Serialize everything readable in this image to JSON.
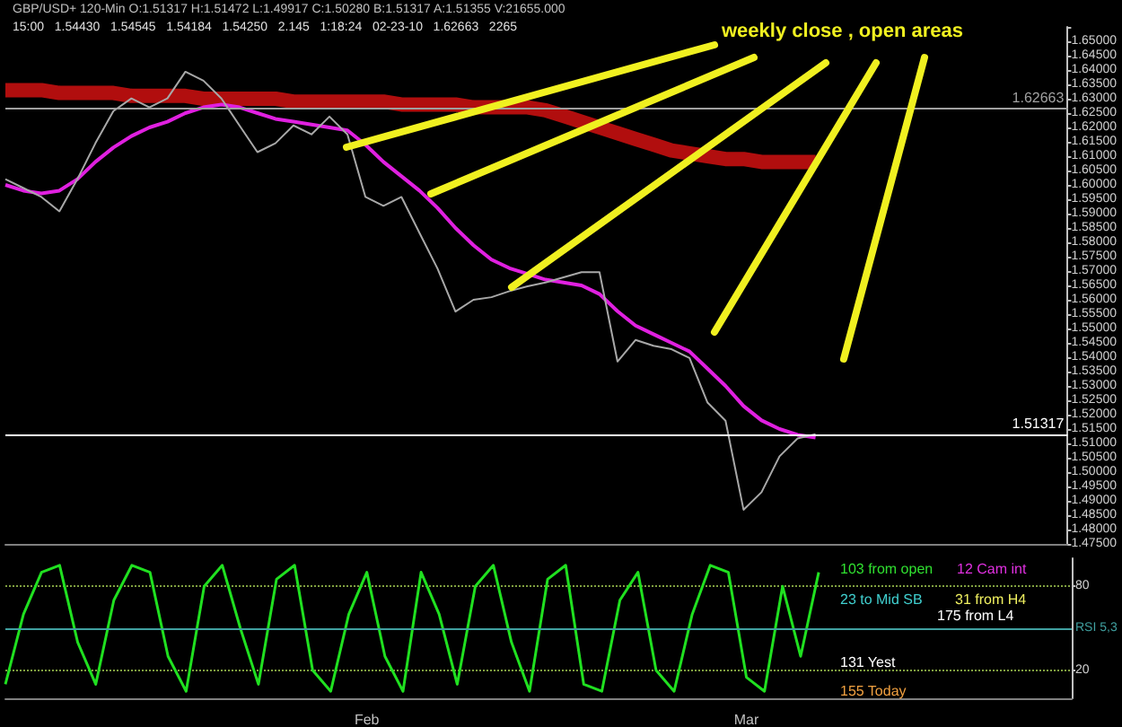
{
  "chart_data": [
    {
      "type": "line",
      "title": "GBP/USD+ 120-Min O:1.51317 H:1.51472 L:1.49917 C:1.50280 B:1.51317 A:1.51355 V:21655.000",
      "subtitle": "15:00   1.54430   1.54545   1.54184   1.54250   2.145   1:18:24   02-23-10   1.62663   2265",
      "categories": [
        null,
        null,
        null,
        null,
        null,
        null,
        null,
        null,
        null,
        null,
        null,
        null,
        null,
        null,
        null,
        null,
        null,
        null,
        null,
        null,
        null,
        null,
        null,
        null,
        null,
        null,
        null,
        null,
        null,
        null,
        null,
        null,
        null,
        null,
        null,
        null,
        null,
        null,
        null,
        null,
        null,
        null,
        null,
        null,
        null,
        null,
        null,
        null,
        null,
        null,
        null,
        null,
        null,
        null,
        null,
        null,
        null,
        null,
        null,
        null
      ],
      "series": [
        {
          "color": "#d01010",
          "values": [
            1.633,
            1.633,
            1.633,
            1.632,
            1.632,
            1.632,
            1.632,
            1.631,
            1.631,
            1.631,
            1.631,
            1.63,
            1.63,
            1.63,
            1.63,
            1.63,
            1.629,
            1.629,
            1.629,
            1.629,
            1.629,
            1.629,
            1.628,
            1.628,
            1.628,
            1.628,
            1.627,
            1.627,
            1.627,
            1.627,
            1.626,
            1.624,
            1.622,
            1.62,
            1.618,
            1.616,
            1.614,
            1.612,
            1.611,
            1.61,
            1.609,
            1.609,
            1.608,
            1.608,
            1.608,
            1.608,
            null,
            null,
            null,
            null,
            null,
            null,
            null,
            null,
            null,
            null,
            null,
            null,
            null,
            null
          ]
        },
        {
          "color": "#e020e0",
          "values": [
            1.6,
            1.598,
            1.597,
            1.598,
            1.602,
            1.608,
            1.613,
            1.617,
            1.62,
            1.622,
            1.625,
            1.627,
            1.628,
            1.627,
            1.625,
            1.623,
            1.622,
            1.621,
            1.62,
            1.619,
            1.614,
            1.608,
            1.603,
            1.598,
            1.592,
            1.585,
            1.579,
            1.574,
            1.571,
            1.569,
            1.567,
            1.566,
            1.565,
            1.562,
            1.556,
            1.551,
            1.548,
            1.545,
            1.542,
            1.536,
            1.53,
            1.523,
            1.518,
            1.515,
            1.513,
            1.512,
            null,
            null,
            null,
            null,
            null,
            null,
            null,
            null,
            null,
            null,
            null,
            null,
            null,
            null
          ]
        },
        {
          "color": "#a8a8a8",
          "values": [
            1.602,
            1.5989,
            1.5958,
            1.5908,
            1.602,
            1.6145,
            1.6257,
            1.6301,
            1.627,
            1.6301,
            1.6394,
            1.6363,
            1.6301,
            1.6207,
            1.6114,
            1.6145,
            1.6207,
            1.6176,
            1.6238,
            1.6176,
            1.5958,
            1.5927,
            1.5958,
            1.5833,
            1.5709,
            1.5559,
            1.56,
            1.5609,
            1.563,
            1.5647,
            1.566,
            1.5678,
            1.5696,
            1.5696,
            1.5385,
            1.546,
            1.544,
            1.5428,
            1.5397,
            1.5242,
            1.5179,
            1.4869,
            1.493,
            1.5055,
            1.5117,
            1.5132,
            null,
            null,
            null,
            null,
            null,
            null,
            null,
            null,
            null,
            null,
            null,
            null,
            null,
            null
          ]
        }
      ],
      "ylim": [
        1.475,
        1.655
      ],
      "yticks": [
        {
          "value": 1.475,
          "label": "1.47500"
        },
        {
          "value": 1.48,
          "label": "1.48000"
        },
        {
          "value": 1.485,
          "label": "1.48500"
        },
        {
          "value": 1.49,
          "label": "1.49000"
        },
        {
          "value": 1.495,
          "label": "1.49500"
        },
        {
          "value": 1.5,
          "label": "1.50000"
        },
        {
          "value": 1.505,
          "label": "1.50500"
        },
        {
          "value": 1.51,
          "label": "1.51000"
        },
        {
          "value": 1.515,
          "label": "1.51500"
        },
        {
          "value": 1.52,
          "label": "1.52000"
        },
        {
          "value": 1.525,
          "label": "1.52500"
        },
        {
          "value": 1.53,
          "label": "1.53000"
        },
        {
          "value": 1.535,
          "label": "1.53500"
        },
        {
          "value": 1.54,
          "label": "1.54000"
        },
        {
          "value": 1.545,
          "label": "1.54500"
        },
        {
          "value": 1.55,
          "label": "1.55000"
        },
        {
          "value": 1.555,
          "label": "1.55500"
        },
        {
          "value": 1.56,
          "label": "1.56000"
        },
        {
          "value": 1.565,
          "label": "1.56500"
        },
        {
          "value": 1.57,
          "label": "1.57000"
        },
        {
          "value": 1.575,
          "label": "1.57500"
        },
        {
          "value": 1.58,
          "label": "1.58000"
        },
        {
          "value": 1.585,
          "label": "1.58500"
        },
        {
          "value": 1.59,
          "label": "1.59000"
        },
        {
          "value": 1.595,
          "label": "1.59500"
        },
        {
          "value": 1.6,
          "label": "1.60000"
        },
        {
          "value": 1.605,
          "label": "1.60500"
        },
        {
          "value": 1.61,
          "label": "1.61000"
        },
        {
          "value": 1.615,
          "label": "1.61500"
        },
        {
          "value": 1.62,
          "label": "1.62000"
        },
        {
          "value": 1.625,
          "label": "1.62500"
        },
        {
          "value": 1.63,
          "label": "1.63000"
        },
        {
          "value": 1.635,
          "label": "1.63500"
        },
        {
          "value": 1.64,
          "label": "1.64000"
        },
        {
          "value": 1.645,
          "label": "1.64500"
        },
        {
          "value": 1.65,
          "label": "1.65000"
        },
        {
          "value": 1.655,
          "label": null
        }
      ],
      "ref_lines": [
        {
          "axis": "y",
          "value": 1.62663,
          "label": "1.62663",
          "color": "#a0a0a0"
        },
        {
          "axis": "y",
          "value": 1.51317,
          "label": "1.51317",
          "color": "#ffffff"
        }
      ],
      "annotations": [
        "weekly close , open areas"
      ],
      "marker": "none",
      "tick_labels": "y",
      "grid": false
    },
    {
      "type": "line",
      "categories": [
        null,
        null,
        null,
        null,
        null,
        null,
        null,
        null,
        null,
        null,
        null,
        null,
        null,
        null,
        null,
        null,
        null,
        null,
        null,
        null,
        "Feb",
        null,
        null,
        null,
        null,
        null,
        null,
        null,
        null,
        null,
        null,
        null,
        null,
        null,
        null,
        null,
        null,
        null,
        null,
        null,
        null,
        "Mar",
        null,
        null,
        null,
        null,
        null,
        null,
        null,
        null,
        null,
        null,
        null,
        null,
        null,
        null,
        null,
        null,
        null,
        null
      ],
      "series": [
        {
          "color": "#20e020",
          "values": [
            10,
            60,
            90,
            95,
            40,
            10,
            70,
            95,
            90,
            30,
            5,
            80,
            95,
            50,
            10,
            85,
            95,
            20,
            5,
            60,
            90,
            30,
            5,
            90,
            60,
            10,
            80,
            95,
            40,
            5,
            85,
            95,
            10,
            5,
            70,
            90,
            20,
            5,
            60,
            95,
            90,
            15,
            5,
            80,
            30,
            90,
            null,
            null,
            null,
            null,
            null,
            null,
            null,
            null,
            null,
            null,
            null,
            null,
            null,
            null
          ]
        }
      ],
      "ylim": [
        0,
        100
      ],
      "yticks": [
        20,
        80
      ],
      "grid": "y",
      "ref_lines": [
        {
          "axis": "y",
          "value": 50,
          "label": "RSI 5,3",
          "color": "#40a0a0"
        }
      ],
      "annotations": [
        "103 from open",
        "12 Cam int",
        "23 to Mid SB",
        "31 from H4",
        "175 from L4",
        "131 Yest",
        "155 Today"
      ],
      "marker": "none"
    }
  ]
}
